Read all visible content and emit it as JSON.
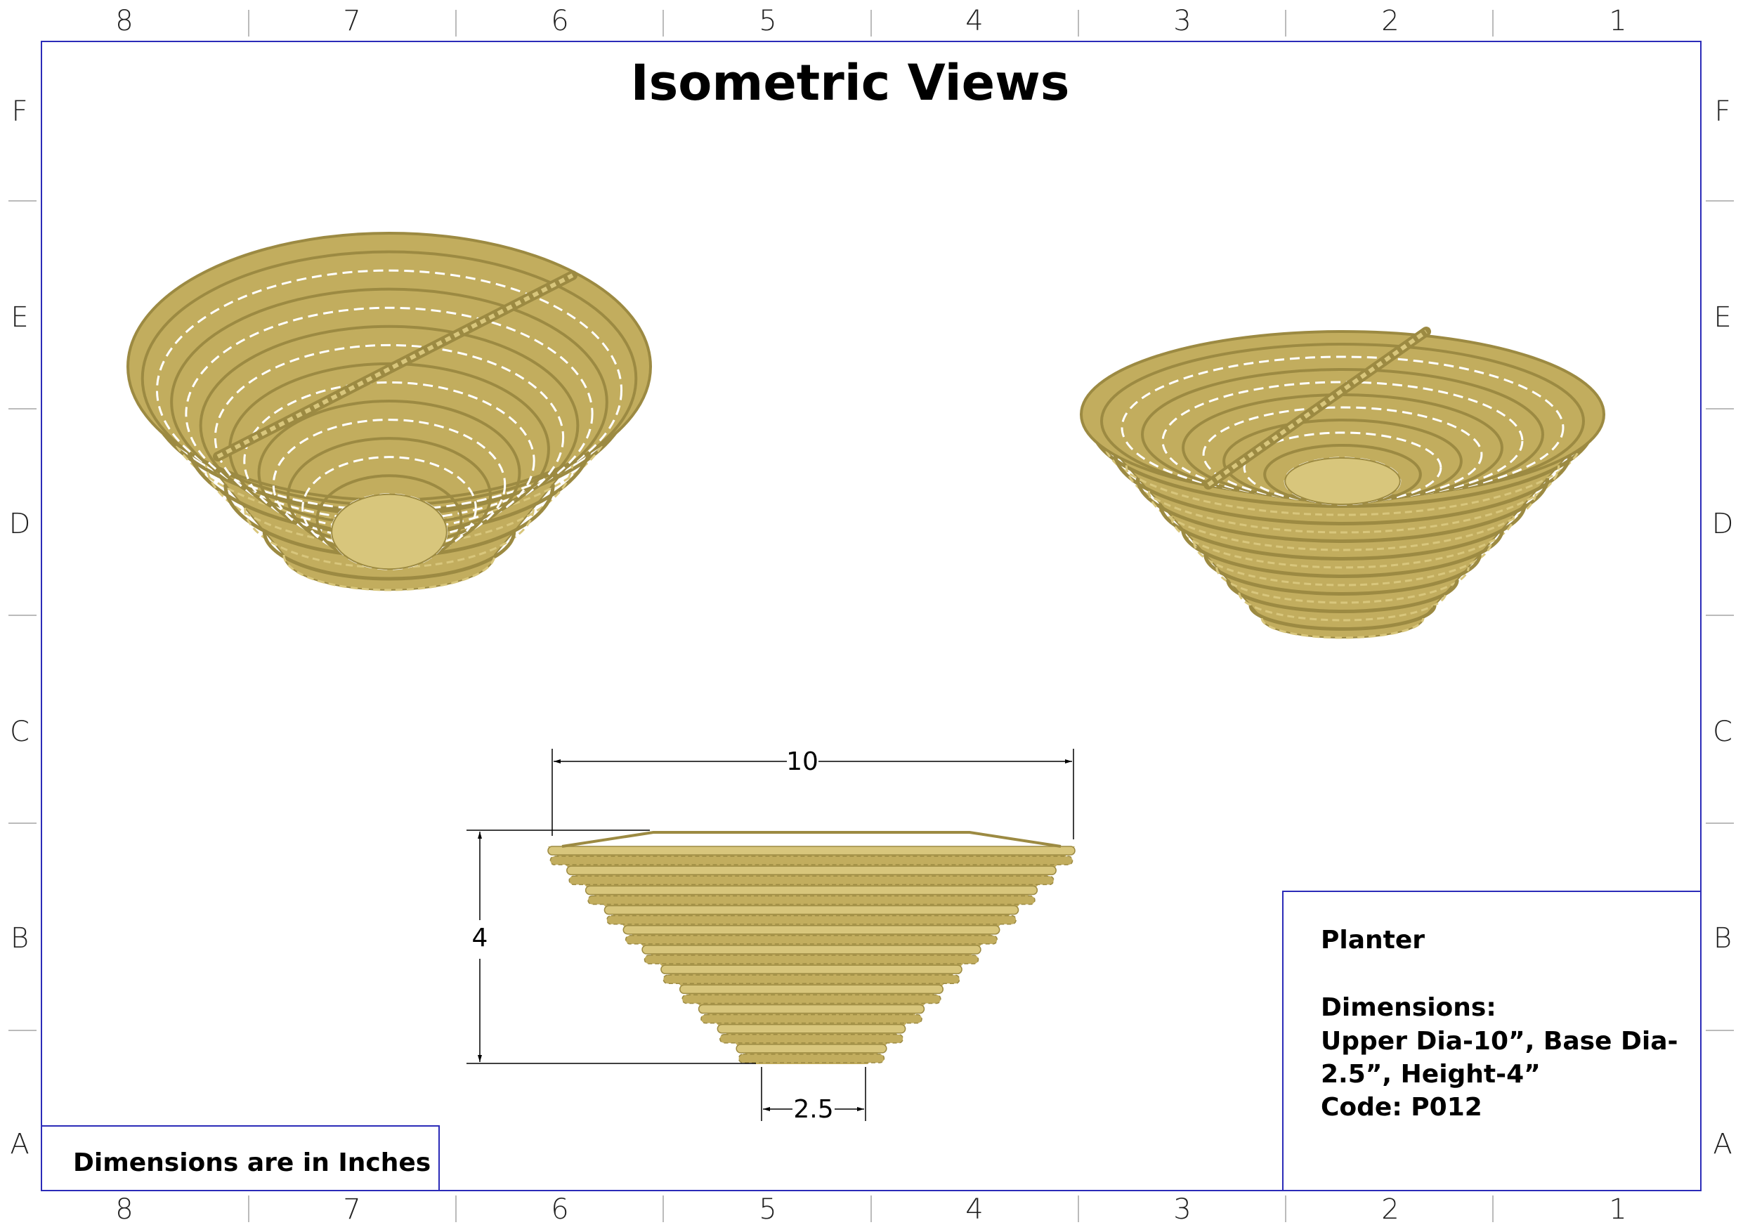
{
  "sheet": {
    "title": "Isometric Views",
    "columns": [
      "8",
      "7",
      "6",
      "5",
      "4",
      "3",
      "2",
      "1"
    ],
    "rows": [
      "F",
      "E",
      "D",
      "C",
      "B",
      "A"
    ],
    "border_color": "#2b2bb8",
    "units_note": "Dimensions are in Inches"
  },
  "title_block": {
    "name": "Planter",
    "dimensions_label": "Dimensions:",
    "dimensions_line1": "Upper Dia-10”, Base Dia-",
    "dimensions_line2": "2.5”, Height-4”",
    "code": "Code: P012"
  },
  "front_view": {
    "upper_dia": "10",
    "height": "4",
    "base_dia": "2.5"
  },
  "colors": {
    "basket": "#c2ad5e",
    "basket_dark": "#9c8a42",
    "basket_light": "#d8c67c"
  }
}
